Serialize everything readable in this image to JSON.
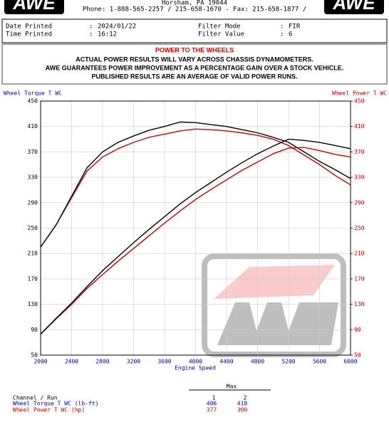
{
  "header": {
    "logo_left": "AWE",
    "logo_right": "AWE",
    "address": "Horsham, PA 19044",
    "phone": "Phone: 1-888-565-2257 / 215-658-1670 - Fax: 215-658-1877 /"
  },
  "info": {
    "date_label": "Date Printed",
    "date_value": "2024/01/22",
    "time_label": "Time Printed",
    "time_value": "16:12",
    "filter_mode_label": "Filter Mode",
    "filter_mode_value": "FIR",
    "filter_value_label": "Filter Value",
    "filter_value_value": "6",
    "separator": ":"
  },
  "notice": {
    "title": "POWER TO THE WHEELS",
    "lines": [
      "ACTUAL POWER RESULTS WILL VARY ACROSS CHASSIS DYNAMOMETERS.",
      "AWE GUARANTEES POWER IMPROVEMENT AS A PERCENTAGE GAIN OVER A STOCK VEHICLE.",
      "PUBLISHED RESULTS ARE AN AVERAGE OF VALID POWER RUNS."
    ]
  },
  "chart_data": {
    "type": "line",
    "y_label": "Wheel Torque T WC",
    "y2_label": "Wheel Power T WC",
    "x_label": "Engine Speed",
    "x": [
      2000,
      2200,
      2400,
      2600,
      2800,
      3000,
      3200,
      3400,
      3600,
      3800,
      4000,
      4200,
      4400,
      4600,
      4800,
      5000,
      5200,
      5400,
      5600,
      5800,
      6000
    ],
    "series": [
      {
        "color": "#cc0000",
        "axis": "y",
        "values": [
          220,
          255,
          298,
          340,
          362,
          375,
          385,
          393,
          398,
          403,
          406,
          405,
          403,
          400,
          396,
          390,
          380,
          365,
          350,
          333,
          318
        ]
      },
      {
        "color": "#000000",
        "axis": "y",
        "values": [
          220,
          255,
          300,
          345,
          370,
          385,
          395,
          404,
          410,
          417,
          416,
          413,
          410,
          405,
          400,
          393,
          385,
          370,
          355,
          342,
          328
        ]
      },
      {
        "color": "#cc0000",
        "axis": "y2",
        "values": [
          83,
          107,
          130,
          155,
          177,
          198,
          218,
          238,
          258,
          277,
          295,
          311,
          326,
          341,
          354,
          367,
          376,
          377,
          372,
          366,
          362
        ]
      },
      {
        "color": "#000000",
        "axis": "y2",
        "values": [
          83,
          108,
          132,
          158,
          183,
          205,
          227,
          248,
          268,
          288,
          306,
          322,
          338,
          353,
          367,
          379,
          390,
          388,
          385,
          380,
          375
        ]
      }
    ],
    "xlim": [
      2000,
      6000
    ],
    "xticks": [
      2000,
      2400,
      2800,
      3200,
      3600,
      4000,
      4400,
      4800,
      5200,
      5600,
      6000
    ],
    "ylim": [
      50,
      450
    ],
    "yticks": [
      50,
      90,
      130,
      170,
      210,
      250,
      290,
      330,
      370,
      410,
      450
    ],
    "y2lim": [
      50,
      450
    ],
    "y2ticks": [
      50,
      90,
      130,
      170,
      210,
      250,
      290,
      330,
      370,
      410,
      450
    ],
    "grid": true
  },
  "table": {
    "header": "Max",
    "channel_label": "Channel / Run",
    "runs": [
      "1",
      "2"
    ],
    "rows": [
      {
        "name": "Wheel Torque T WC (lb-ft)",
        "values": [
          406,
          418
        ]
      },
      {
        "name": "Wheel Power T WC (hp)",
        "values": [
          377,
          390
        ]
      }
    ]
  }
}
